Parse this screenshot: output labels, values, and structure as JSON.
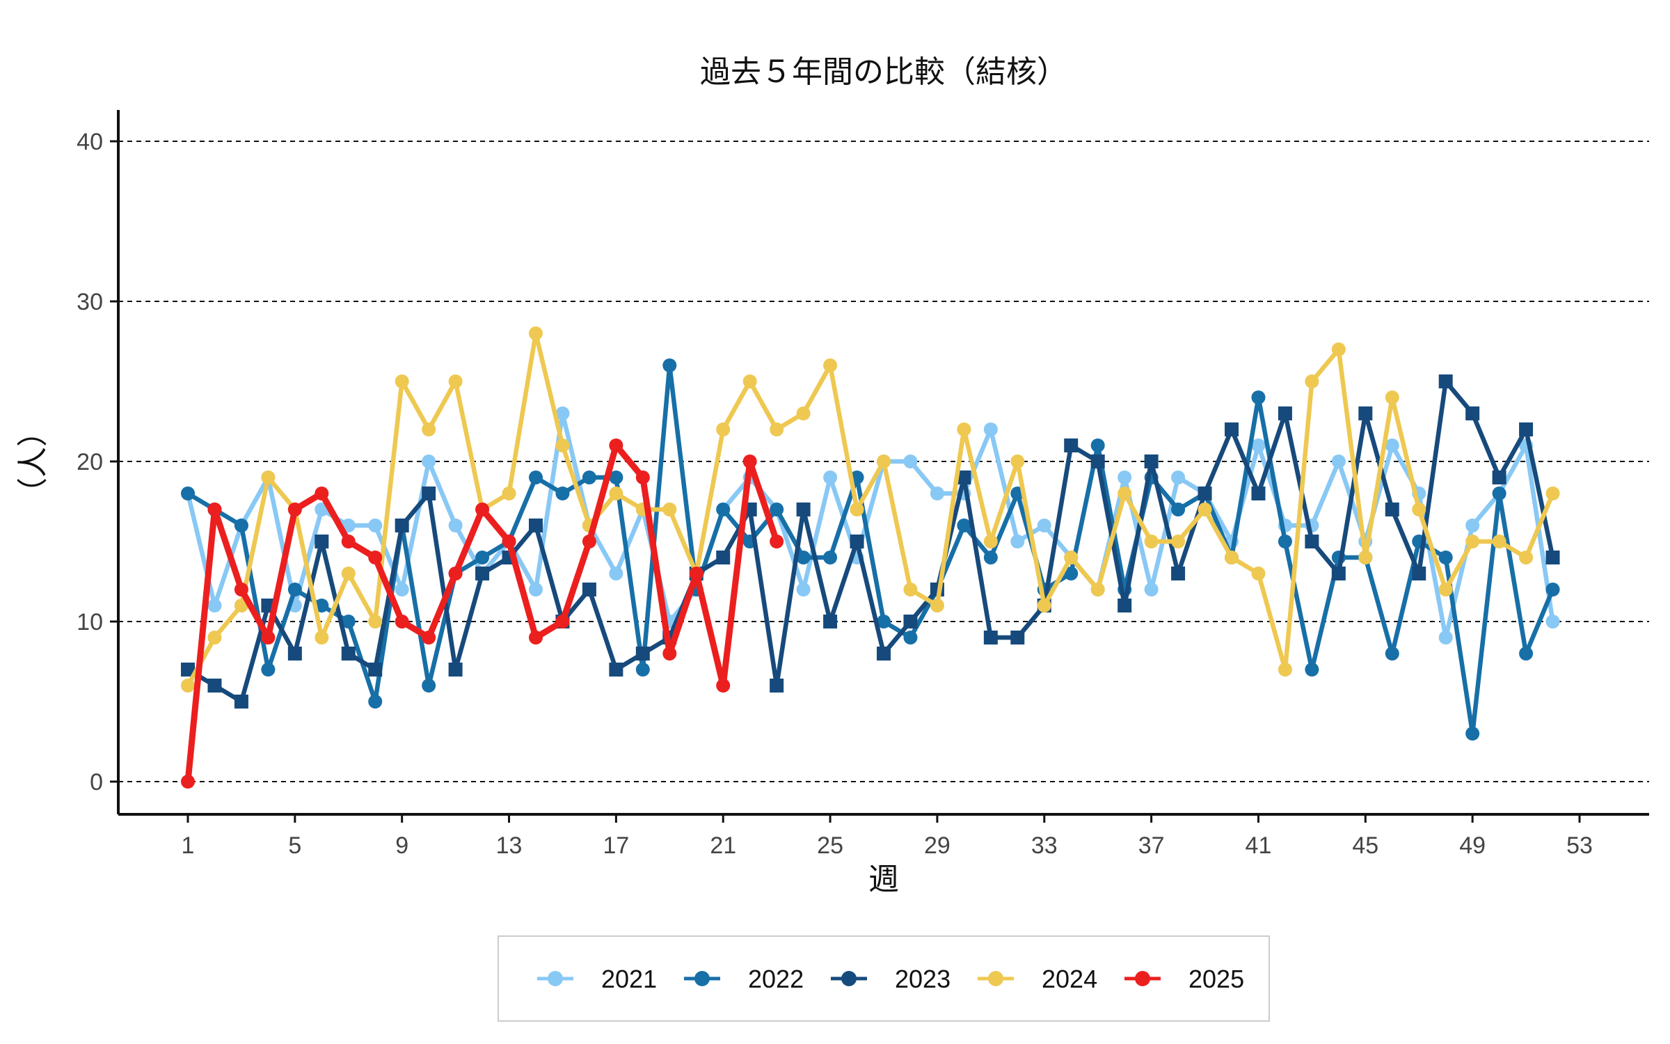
{
  "chart_data": {
    "type": "line",
    "title": "過去５年間の比較（結核）",
    "xlabel": "週",
    "ylabel": "（人）",
    "xlim": [
      1,
      53
    ],
    "ylim": [
      0,
      40
    ],
    "x_ticks": [
      1,
      5,
      9,
      13,
      17,
      21,
      25,
      29,
      33,
      37,
      41,
      45,
      49,
      53
    ],
    "y_ticks": [
      0,
      10,
      20,
      30,
      40
    ],
    "grid": "horizontal dashed",
    "legend_position": "bottom",
    "series": [
      {
        "name": "2021",
        "color": "#88c8f5",
        "marker": "circle",
        "values": [
          18,
          11,
          16,
          19,
          11,
          17,
          16,
          16,
          12,
          20,
          16,
          13,
          15,
          12,
          23,
          16,
          13,
          17,
          10,
          12,
          17,
          19,
          17,
          12,
          19,
          14,
          20,
          20,
          18,
          18,
          22,
          15,
          16,
          14,
          12,
          19,
          12,
          19,
          18,
          15,
          21,
          16,
          16,
          20,
          15,
          21,
          18,
          9,
          16,
          18,
          21,
          10
        ]
      },
      {
        "name": "2022",
        "color": "#176fa7",
        "marker": "circle",
        "values": [
          18,
          17,
          16,
          7,
          12,
          11,
          10,
          5,
          16,
          6,
          13,
          14,
          15,
          19,
          18,
          19,
          19,
          7,
          26,
          12,
          17,
          15,
          17,
          14,
          14,
          19,
          10,
          9,
          12,
          16,
          14,
          18,
          12,
          13,
          21,
          12,
          19,
          17,
          18,
          14,
          24,
          15,
          7,
          14,
          14,
          8,
          15,
          14,
          3,
          18,
          8,
          12
        ]
      },
      {
        "name": "2023",
        "color": "#174a7c",
        "marker": "square",
        "values": [
          7,
          6,
          5,
          11,
          8,
          15,
          8,
          7,
          16,
          18,
          7,
          13,
          14,
          16,
          10,
          12,
          7,
          8,
          9,
          13,
          14,
          17,
          6,
          17,
          10,
          15,
          8,
          10,
          12,
          19,
          9,
          9,
          11,
          21,
          20,
          11,
          20,
          13,
          18,
          22,
          18,
          23,
          15,
          13,
          23,
          17,
          13,
          25,
          23,
          19,
          22,
          14
        ]
      },
      {
        "name": "2024",
        "color": "#eec851",
        "marker": "circle",
        "values": [
          6,
          9,
          11,
          19,
          17,
          9,
          13,
          10,
          25,
          22,
          25,
          17,
          18,
          28,
          21,
          16,
          18,
          17,
          17,
          13,
          22,
          25,
          22,
          23,
          26,
          17,
          20,
          12,
          11,
          22,
          15,
          20,
          11,
          14,
          12,
          18,
          15,
          15,
          17,
          14,
          13,
          7,
          25,
          27,
          14,
          24,
          17,
          12,
          15,
          15,
          14,
          18
        ]
      },
      {
        "name": "2025",
        "color": "#ec1f1f",
        "marker": "circle",
        "values": [
          0,
          17,
          12,
          9,
          17,
          18,
          15,
          14,
          10,
          9,
          13,
          17,
          15,
          9,
          10,
          15,
          21,
          19,
          8,
          13,
          6,
          20,
          15
        ]
      }
    ]
  }
}
